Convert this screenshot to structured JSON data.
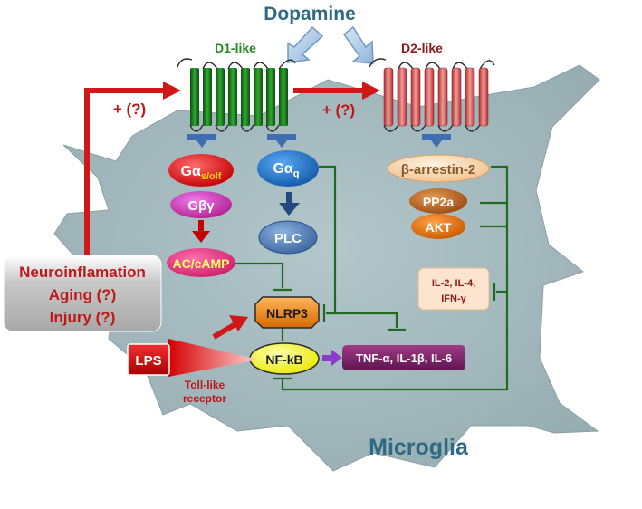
{
  "title": "Dopamine",
  "receptors": {
    "d1": "D1-like",
    "d2": "D2-like"
  },
  "modulation": {
    "left": "+ (?)",
    "right": "+ (?)"
  },
  "nodes": {
    "gas_main": "Gα",
    "gas_sub": "s/olf",
    "gby": "Gβγ",
    "accamp": "AC/cAMP",
    "gaq_main": "Gα",
    "gaq_sub": "q",
    "plc": "PLC",
    "barrestin": "β-arrestin-2",
    "pp2a": "PP2a",
    "akt": "AKT",
    "nlrp3": "NLRP3",
    "nfkb": "NF-kB",
    "cytokines": "TNF-α, IL-1β, IL-6",
    "interleukins_line1": "IL-2, IL-4,",
    "interleukins_line2": "IFN-γ",
    "lps": "LPS",
    "tlr_line1": "Toll-like",
    "tlr_line2": "receptor"
  },
  "conditions": [
    "Neuroinflamation",
    "Aging (?)",
    "Injury (?)"
  ],
  "cell_label": "Microglia",
  "colors": {
    "title": "#2e6a84",
    "d1": "#1e8c1e",
    "d2": "#8c1a1a",
    "arrow_red": "#d01818",
    "inhibit_green": "#1f6b1f",
    "cell": "#a3b9bd"
  }
}
